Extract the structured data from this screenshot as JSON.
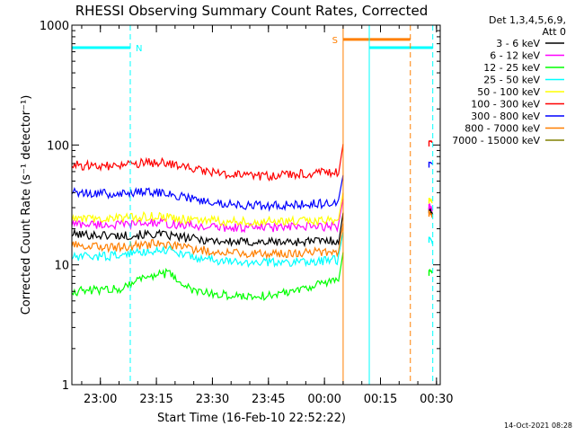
{
  "chart_data": {
    "type": "line",
    "title": "RHESSI Observing Summary Count Rates, Corrected",
    "ylabel": "Corrected Count Rate (s⁻¹ detector⁻¹)",
    "xlabel": "Start Time (16-Feb-10 22:52:22)",
    "y_scale": "log",
    "ylim": [
      1,
      1000
    ],
    "xlim": [
      "22:52:22",
      "00:31:00"
    ],
    "y_ticks": [
      {
        "value": 1,
        "label": "1"
      },
      {
        "value": 10,
        "label": "10"
      },
      {
        "value": 100,
        "label": "100"
      },
      {
        "value": 1000,
        "label": "1000"
      }
    ],
    "x_ticks": [
      {
        "value": "23:00",
        "label": "23:00"
      },
      {
        "value": "23:15",
        "label": "23:15"
      },
      {
        "value": "23:30",
        "label": "23:30"
      },
      {
        "value": "23:45",
        "label": "23:45"
      },
      {
        "value": "00:00",
        "label": "00:00"
      },
      {
        "value": "00:15",
        "label": "00:15"
      },
      {
        "value": "00:30",
        "label": "00:30"
      }
    ],
    "legend_header": [
      "Det 1,3,4,5,6,9,",
      "Att 0"
    ],
    "legend_position": "right",
    "series": [
      {
        "name": "3 - 6 keV",
        "color": "#000000",
        "x": [
          "22:52:22",
          "23:05",
          "23:15",
          "23:25",
          "23:35",
          "23:50",
          "00:04"
        ],
        "y": [
          18,
          17.5,
          18,
          16.5,
          15.5,
          15.5,
          16
        ],
        "x2": [
          "00:28",
          "00:29"
        ],
        "y2": [
          30,
          26
        ]
      },
      {
        "name": "6 - 12 keV",
        "color": "#ff00ff",
        "x": [
          "22:52:22",
          "23:05",
          "23:15",
          "23:25",
          "23:35",
          "23:50",
          "00:04"
        ],
        "y": [
          22,
          21.5,
          22.5,
          21,
          20.5,
          20.5,
          21
        ],
        "x2": [
          "00:28",
          "00:29"
        ],
        "y2": [
          32,
          28
        ]
      },
      {
        "name": "12 - 25 keV",
        "color": "#00ff00",
        "x": [
          "22:52:22",
          "23:05",
          "23:12",
          "23:18",
          "23:25",
          "23:35",
          "23:45",
          "23:55",
          "00:04"
        ],
        "y": [
          6,
          6.3,
          8,
          8.5,
          6,
          5.5,
          5.5,
          6.5,
          7.5
        ],
        "x2": [
          "00:28",
          "00:29"
        ],
        "y2": [
          9,
          8.5
        ]
      },
      {
        "name": "25 - 50 keV",
        "color": "#00ffff",
        "x": [
          "22:52:22",
          "23:05",
          "23:12",
          "23:18",
          "23:25",
          "23:35",
          "23:50",
          "00:04"
        ],
        "y": [
          11.5,
          12,
          13,
          13.5,
          11.5,
          10.5,
          10.5,
          11
        ],
        "x2": [
          "00:28",
          "00:29"
        ],
        "y2": [
          17,
          15
        ]
      },
      {
        "name": "50 - 100 keV",
        "color": "#ffff00",
        "x": [
          "22:52:22",
          "23:05",
          "23:15",
          "23:25",
          "23:35",
          "23:50",
          "00:04"
        ],
        "y": [
          24,
          24.5,
          25.5,
          23.5,
          23,
          23,
          23.5
        ],
        "x2": [
          "00:28",
          "00:29"
        ],
        "y2": [
          36,
          33
        ]
      },
      {
        "name": "100 - 300 keV",
        "color": "#ff0000",
        "x": [
          "22:52:22",
          "23:05",
          "23:12",
          "23:18",
          "23:25",
          "23:35",
          "23:45",
          "23:55",
          "00:04"
        ],
        "y": [
          68,
          66,
          71,
          71,
          63,
          56,
          55,
          58,
          60
        ],
        "x2": [
          "00:28",
          "00:29"
        ],
        "y2": [
          108,
          105
        ]
      },
      {
        "name": "300 - 800 keV",
        "color": "#0000ff",
        "x": [
          "22:52:22",
          "23:05",
          "23:12",
          "23:18",
          "23:25",
          "23:35",
          "23:45",
          "23:55",
          "00:04"
        ],
        "y": [
          40,
          39,
          41,
          40,
          35,
          32,
          31,
          32,
          33
        ],
        "x2": [
          "00:28",
          "00:29"
        ],
        "y2": [
          72,
          68
        ]
      },
      {
        "name": "800 - 7000 keV",
        "color": "#ff7f00",
        "x": [
          "22:52:22",
          "23:05",
          "23:15",
          "23:25",
          "23:35",
          "23:50",
          "00:04"
        ],
        "y": [
          14.5,
          14,
          15,
          13.5,
          12.5,
          12.5,
          13
        ],
        "x2": [
          "00:28",
          "00:29"
        ],
        "y2": [
          28,
          25
        ]
      },
      {
        "name": "7000 - 15000 keV",
        "color": "#808000",
        "x": [],
        "y": [],
        "x2": [],
        "y2": []
      }
    ],
    "events": [
      {
        "type": "night_bar",
        "label": "N",
        "color": "#00ffff",
        "x1": "22:52:22",
        "x2": "23:08",
        "y": 650
      },
      {
        "type": "night_bar",
        "label": "",
        "color": "#00ffff",
        "x1": "00:12",
        "x2": "00:29",
        "y": 650
      },
      {
        "type": "saa_bar",
        "label": "S",
        "color": "#ff7f00",
        "x1": "00:05",
        "x2": "00:23",
        "y": 760
      },
      {
        "type": "vline",
        "style": "solid",
        "color": "#00ffff",
        "x": "22:52:22"
      },
      {
        "type": "vline",
        "style": "dashed",
        "color": "#00ffff",
        "x": "23:08"
      },
      {
        "type": "vline",
        "style": "solid",
        "color": "#ff7f00",
        "x": "00:05"
      },
      {
        "type": "vline",
        "style": "solid",
        "color": "#00ffff",
        "x": "00:12"
      },
      {
        "type": "vline",
        "style": "dashed",
        "color": "#ff7f00",
        "x": "00:23"
      },
      {
        "type": "vline",
        "style": "dashed",
        "color": "#00ffff",
        "x": "00:29"
      }
    ]
  },
  "footer": {
    "timestamp": "14-Oct-2021 08:28"
  },
  "colors": {
    "background": "#ffffff",
    "axes": "#000000"
  }
}
